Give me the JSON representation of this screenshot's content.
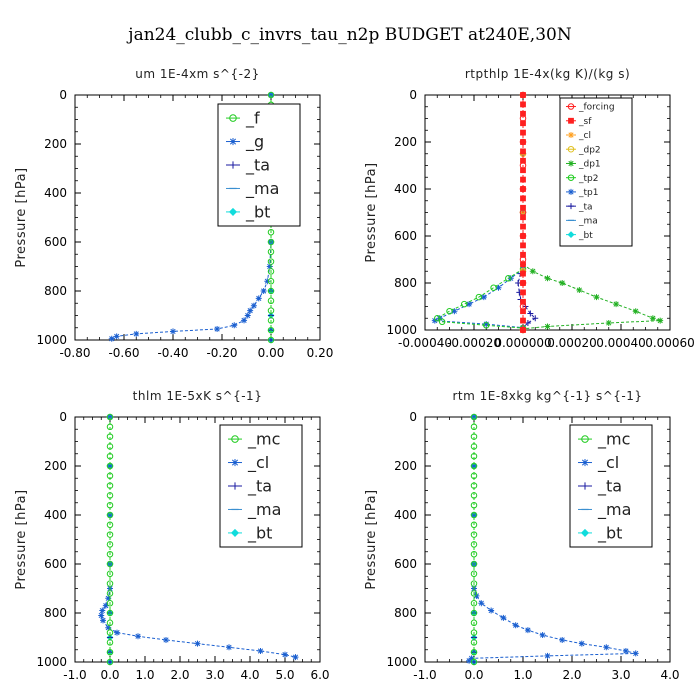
{
  "title": "jan24_clubb_c_invrs_tau_n2p  BUDGET at240E,30N",
  "chart_data": [
    {
      "type": "line",
      "title": "um   1E-4xm s^{-2}",
      "ylabel": "Pressure [hPa]",
      "xlim": [
        -0.8,
        0.2
      ],
      "ylim": [
        1000,
        0
      ],
      "xticks": [
        "-0.80",
        "-0.60",
        "-0.40",
        "-0.20",
        "0.00",
        "0.20"
      ],
      "xtick_values": [
        -0.8,
        -0.6,
        -0.4,
        -0.2,
        0.0,
        0.2
      ],
      "yticks": [
        "0",
        "200",
        "400",
        "600",
        "800",
        "1000"
      ],
      "legend_style": "large",
      "series": [
        {
          "name": "_f",
          "color": "#22cc22",
          "marker": "o",
          "y": [
            0,
            40,
            80,
            120,
            160,
            200,
            240,
            280,
            320,
            360,
            400,
            440,
            480,
            520,
            560,
            600,
            640,
            680,
            720,
            760,
            800,
            840,
            880,
            920,
            960,
            1000
          ],
          "x": [
            0,
            0,
            0,
            0,
            0,
            0,
            0,
            0,
            0,
            0,
            0,
            0,
            0,
            0,
            0,
            0,
            0,
            0,
            0,
            0,
            0,
            0,
            0,
            0,
            0,
            0
          ]
        },
        {
          "name": "_g",
          "color": "#1a5fd0",
          "marker": "*",
          "y": [
            0,
            100,
            200,
            300,
            400,
            500,
            600,
            700,
            760,
            800,
            830,
            860,
            880,
            900,
            920,
            940,
            955,
            965,
            975,
            985,
            995
          ],
          "x": [
            0,
            0,
            0,
            0,
            0,
            0,
            0,
            -0.005,
            -0.015,
            -0.03,
            -0.05,
            -0.07,
            -0.085,
            -0.095,
            -0.11,
            -0.15,
            -0.22,
            -0.4,
            -0.55,
            -0.63,
            -0.65
          ]
        },
        {
          "name": "_ta",
          "color": "#1a1aa0",
          "marker": "+",
          "y": [
            0,
            200,
            400,
            600,
            800,
            900,
            960,
            1000
          ],
          "x": [
            0,
            0,
            0,
            0,
            0,
            0,
            0,
            0
          ]
        },
        {
          "name": "_ma",
          "color": "#3a8fd0",
          "marker": "-",
          "y": [
            0,
            200,
            400,
            600,
            800,
            900,
            960,
            1000
          ],
          "x": [
            0,
            0,
            0,
            0,
            0,
            0,
            0,
            0
          ]
        },
        {
          "name": "_bt",
          "color": "#10dcdc",
          "marker": "d",
          "y": [
            0,
            200,
            400,
            600,
            800,
            900,
            960,
            1000
          ],
          "x": [
            0,
            0,
            0,
            0,
            0,
            0,
            0,
            0
          ]
        }
      ]
    },
    {
      "type": "line",
      "title": "rtpthlp   1E-4x(kg K)/(kg s)",
      "ylabel": "Pressure [hPa]",
      "xlim": [
        -0.0004,
        0.0006
      ],
      "ylim": [
        1000,
        0
      ],
      "xticks": [
        "-0.00040",
        "-0.00020",
        "0.000000",
        "0.00020",
        "0.00040",
        "0.00060"
      ],
      "xtick_values": [
        -0.0004,
        -0.0002,
        0.0,
        0.0002,
        0.0004,
        0.0006
      ],
      "yticks": [
        "0",
        "200",
        "400",
        "600",
        "800",
        "1000"
      ],
      "legend_style": "small",
      "series": [
        {
          "name": "_forcing",
          "color": "#ff2020",
          "marker": "o",
          "y": [
            0,
            100,
            200,
            300,
            400,
            500,
            600,
            700,
            800,
            900,
            1000
          ],
          "x": [
            0,
            0,
            0,
            0,
            0,
            0,
            0,
            0,
            0,
            0,
            0
          ]
        },
        {
          "name": "_sf",
          "color": "#ff2020",
          "marker": "s",
          "y": [
            0,
            40,
            80,
            120,
            160,
            200,
            240,
            280,
            320,
            360,
            400,
            440,
            480,
            520,
            560,
            600,
            640,
            680,
            720,
            760,
            800,
            840,
            880,
            920,
            960,
            1000
          ],
          "x": [
            0,
            0,
            0,
            0,
            0,
            0,
            0,
            0,
            0,
            0,
            0,
            0,
            0,
            0,
            0,
            0,
            0,
            0,
            0,
            0,
            0,
            0,
            0,
            0,
            0,
            0
          ]
        },
        {
          "name": "_cl",
          "color": "#ffa020",
          "marker": "*",
          "y": [
            0,
            250,
            500,
            750,
            1000
          ],
          "x": [
            0,
            0,
            0,
            0,
            0
          ]
        },
        {
          "name": "_dp2",
          "color": "#e0c020",
          "marker": "o",
          "y": [
            0,
            250,
            500,
            750,
            1000
          ],
          "x": [
            0,
            0,
            0,
            0,
            0
          ]
        },
        {
          "name": "_dp1",
          "color": "#22b022",
          "marker": "*",
          "y": [
            720,
            750,
            780,
            800,
            830,
            860,
            890,
            920,
            950,
            960,
            970,
            985,
            995
          ],
          "x": [
            0,
            4e-05,
            0.0001,
            0.00016,
            0.00023,
            0.0003,
            0.00038,
            0.00046,
            0.00053,
            0.00056,
            0.00035,
            0.0001,
            0
          ]
        },
        {
          "name": "_tp2",
          "color": "#22cc22",
          "marker": "o",
          "y": [
            740,
            780,
            820,
            860,
            890,
            920,
            950,
            965,
            980,
            992
          ],
          "x": [
            0,
            -6e-05,
            -0.00012,
            -0.00018,
            -0.00024,
            -0.0003,
            -0.00035,
            -0.00033,
            -0.00015,
            0
          ]
        },
        {
          "name": "_tp1",
          "color": "#1a5fd0",
          "marker": "*",
          "y": [
            740,
            780,
            820,
            860,
            890,
            920,
            950,
            960,
            975,
            990
          ],
          "x": [
            0,
            -5e-05,
            -0.0001,
            -0.00016,
            -0.00022,
            -0.00028,
            -0.00034,
            -0.00036,
            -0.00015,
            0
          ]
        },
        {
          "name": "_ta",
          "color": "#1a1aa0",
          "marker": "+",
          "y": [
            720,
            760,
            800,
            840,
            870,
            900,
            930,
            950,
            970,
            990
          ],
          "x": [
            0,
            -1e-05,
            -2e-05,
            -1.5e-05,
            -1e-05,
            1e-05,
            3e-05,
            5e-05,
            2e-05,
            0
          ]
        },
        {
          "name": "_ma",
          "color": "#3a8fd0",
          "marker": "-",
          "y": [
            0,
            250,
            500,
            750,
            1000
          ],
          "x": [
            0,
            0,
            0,
            0,
            0
          ]
        },
        {
          "name": "_bt",
          "color": "#10dcdc",
          "marker": "d",
          "y": [
            0,
            250,
            500,
            750,
            1000
          ],
          "x": [
            0,
            0,
            0,
            0,
            0
          ]
        }
      ]
    },
    {
      "type": "line",
      "title": "thlm   1E-5xK s^{-1}",
      "ylabel": "Pressure [hPa]",
      "xlim": [
        -1.0,
        6.0
      ],
      "ylim": [
        1000,
        0
      ],
      "xticks": [
        "-1.0",
        "0.0",
        "1.0",
        "2.0",
        "3.0",
        "4.0",
        "5.0",
        "6.0"
      ],
      "xtick_values": [
        -1,
        0,
        1,
        2,
        3,
        4,
        5,
        6
      ],
      "yticks": [
        "0",
        "200",
        "400",
        "600",
        "800",
        "1000"
      ],
      "legend_style": "large",
      "series": [
        {
          "name": "_mc",
          "color": "#22cc22",
          "marker": "o",
          "y": [
            0,
            40,
            80,
            120,
            160,
            200,
            240,
            280,
            320,
            360,
            400,
            440,
            480,
            520,
            560,
            600,
            640,
            680,
            720,
            760,
            800,
            840,
            880,
            920,
            960,
            1000
          ],
          "x": [
            0,
            0,
            0,
            0,
            0,
            0,
            0,
            0,
            0,
            0,
            0,
            0,
            0,
            0,
            0,
            0,
            0,
            0,
            0,
            0,
            0,
            0,
            0,
            0,
            0,
            0
          ]
        },
        {
          "name": "_cl",
          "color": "#1a5fd0",
          "marker": "*",
          "y": [
            0,
            200,
            400,
            600,
            700,
            740,
            770,
            790,
            810,
            830,
            860,
            880,
            895,
            910,
            925,
            940,
            955,
            970,
            980
          ],
          "x": [
            0,
            0,
            0,
            0,
            0,
            -0.05,
            -0.12,
            -0.22,
            -0.25,
            -0.2,
            -0.05,
            0.2,
            0.8,
            1.6,
            2.5,
            3.4,
            4.3,
            5.0,
            5.3
          ]
        },
        {
          "name": "_ta",
          "color": "#1a1aa0",
          "marker": "+",
          "y": [
            0,
            200,
            400,
            600,
            800,
            900,
            960,
            1000
          ],
          "x": [
            0,
            0,
            0,
            0,
            0,
            0,
            0,
            0
          ]
        },
        {
          "name": "_ma",
          "color": "#3a8fd0",
          "marker": "-",
          "y": [
            0,
            200,
            400,
            600,
            800,
            900,
            960,
            1000
          ],
          "x": [
            0,
            0,
            0,
            0,
            0,
            0,
            0,
            0
          ]
        },
        {
          "name": "_bt",
          "color": "#10dcdc",
          "marker": "d",
          "y": [
            0,
            200,
            400,
            600,
            800,
            900,
            960,
            1000
          ],
          "x": [
            0,
            0,
            0,
            0,
            0,
            0,
            0,
            0
          ]
        }
      ]
    },
    {
      "type": "line",
      "title": "rtm   1E-8xkg kg^{-1} s^{-1}",
      "ylabel": "Pressure [hPa]",
      "xlim": [
        -1.0,
        4.0
      ],
      "ylim": [
        1000,
        0
      ],
      "xticks": [
        "-1.0",
        "0.0",
        "1.0",
        "2.0",
        "3.0",
        "4.0"
      ],
      "xtick_values": [
        -1,
        0,
        1,
        2,
        3,
        4
      ],
      "yticks": [
        "0",
        "200",
        "400",
        "600",
        "800",
        "1000"
      ],
      "legend_style": "large",
      "series": [
        {
          "name": "_mc",
          "color": "#22cc22",
          "marker": "o",
          "y": [
            0,
            40,
            80,
            120,
            160,
            200,
            240,
            280,
            320,
            360,
            400,
            440,
            480,
            520,
            560,
            600,
            640,
            680,
            720,
            760,
            800,
            840,
            880,
            920,
            960,
            1000
          ],
          "x": [
            0,
            0,
            0,
            0,
            0,
            0,
            0,
            0,
            0,
            0,
            0,
            0,
            0,
            0,
            0,
            0,
            0,
            0,
            0,
            0,
            0,
            0,
            0,
            0,
            0,
            0
          ]
        },
        {
          "name": "_cl",
          "color": "#1a5fd0",
          "marker": "*",
          "y": [
            0,
            200,
            400,
            600,
            700,
            730,
            760,
            790,
            820,
            850,
            870,
            890,
            910,
            925,
            940,
            955,
            965,
            975,
            985,
            995
          ],
          "x": [
            0,
            0,
            0,
            0,
            0,
            0.05,
            0.15,
            0.35,
            0.6,
            0.85,
            1.1,
            1.4,
            1.8,
            2.2,
            2.7,
            3.1,
            3.3,
            1.5,
            -0.05,
            -0.1
          ]
        },
        {
          "name": "_ta",
          "color": "#1a1aa0",
          "marker": "+",
          "y": [
            0,
            200,
            400,
            600,
            800,
            900,
            960,
            1000
          ],
          "x": [
            0,
            0,
            0,
            0,
            0,
            0,
            0,
            0
          ]
        },
        {
          "name": "_ma",
          "color": "#3a8fd0",
          "marker": "-",
          "y": [
            0,
            200,
            400,
            600,
            800,
            900,
            960,
            1000
          ],
          "x": [
            0,
            0,
            0,
            0,
            0,
            0,
            0,
            0
          ]
        },
        {
          "name": "_bt",
          "color": "#10dcdc",
          "marker": "d",
          "y": [
            0,
            200,
            400,
            600,
            800,
            900,
            960,
            1000
          ],
          "x": [
            0,
            0,
            0,
            0,
            0,
            0,
            0,
            0
          ]
        }
      ]
    }
  ]
}
